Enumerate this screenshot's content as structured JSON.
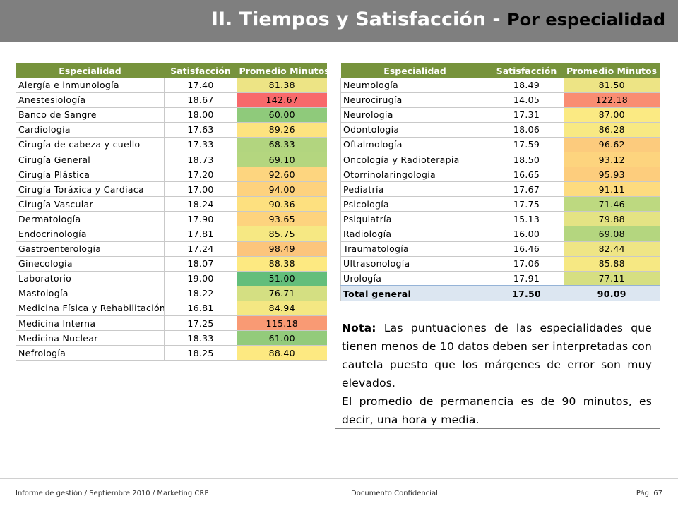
{
  "header": {
    "title_main": "II. Tiempos y  Satisfacción - ",
    "title_sub": "Por especialidad",
    "bg_color": "#7f7f7f"
  },
  "columns": {
    "especialidad": "Especialidad",
    "satisfaccion": "Satisfacción",
    "promedio": "Promedio Minutos"
  },
  "left_table": [
    {
      "especialidad": "Alergía e inmunología",
      "satisfaccion": "17.40",
      "promedio": "81.38",
      "color": "#ede485"
    },
    {
      "especialidad": "Anestesiología",
      "satisfaccion": "18.67",
      "promedio": "142.67",
      "color": "#f8696b"
    },
    {
      "especialidad": "Banco de Sangre",
      "satisfaccion": "18.00",
      "promedio": "60.00",
      "color": "#8fca7b"
    },
    {
      "especialidad": "Cardiología",
      "satisfaccion": "17.63",
      "promedio": "89.26",
      "color": "#fde37f"
    },
    {
      "especialidad": "Cirugía de cabeza y cuello",
      "satisfaccion": "17.33",
      "promedio": "68.33",
      "color": "#b2d57f"
    },
    {
      "especialidad": "Cirugía General",
      "satisfaccion": "18.73",
      "promedio": "69.10",
      "color": "#b4d67f"
    },
    {
      "especialidad": "Cirugía Plástica",
      "satisfaccion": "17.20",
      "promedio": "92.60",
      "color": "#fdd57f"
    },
    {
      "especialidad": "Cirugía Toráxica y Cardiaca",
      "satisfaccion": "17.00",
      "promedio": "94.00",
      "color": "#fdd27e"
    },
    {
      "especialidad": "Cirugía Vascular",
      "satisfaccion": "18.24",
      "promedio": "90.36",
      "color": "#fde07f"
    },
    {
      "especialidad": "Dermatología",
      "satisfaccion": "17.90",
      "promedio": "93.65",
      "color": "#fdd37e"
    },
    {
      "especialidad": "Endocrinología",
      "satisfaccion": "17.81",
      "promedio": "85.75",
      "color": "#f6e883"
    },
    {
      "especialidad": "Gastroenterología",
      "satisfaccion": "17.24",
      "promedio": "98.49",
      "color": "#fcc57c"
    },
    {
      "especialidad": "Ginecología",
      "satisfaccion": "18.07",
      "promedio": "88.38",
      "color": "#fde981"
    },
    {
      "especialidad": "Laboratorio",
      "satisfaccion": "19.00",
      "promedio": "51.00",
      "color": "#63be7b"
    },
    {
      "especialidad": "Mastología",
      "satisfaccion": "18.22",
      "promedio": "76.71",
      "color": "#d4df82"
    },
    {
      "especialidad": "Medicina Física y Rehabilitación",
      "satisfaccion": "16.81",
      "promedio": "84.94",
      "color": "#f4e783"
    },
    {
      "especialidad": "Medicina Interna",
      "satisfaccion": "17.25",
      "promedio": "115.18",
      "color": "#f99a74"
    },
    {
      "especialidad": "Medicina Nuclear",
      "satisfaccion": "18.33",
      "promedio": "61.00",
      "color": "#93cb7b"
    },
    {
      "especialidad": "Nefrología",
      "satisfaccion": "18.25",
      "promedio": "88.40",
      "color": "#fde981"
    }
  ],
  "right_table": [
    {
      "especialidad": "Neumología",
      "satisfaccion": "18.49",
      "promedio": "81.50",
      "color": "#ede485"
    },
    {
      "especialidad": "Neurocirugía",
      "satisfaccion": "14.05",
      "promedio": "122.18",
      "color": "#f98d72"
    },
    {
      "especialidad": "Neurología",
      "satisfaccion": "17.31",
      "promedio": "87.00",
      "color": "#fbea83"
    },
    {
      "especialidad": "Odontología",
      "satisfaccion": "18.06",
      "promedio": "86.28",
      "color": "#f8e983"
    },
    {
      "especialidad": "Oftalmología",
      "satisfaccion": "17.59",
      "promedio": "96.62",
      "color": "#fccb7d"
    },
    {
      "especialidad": "Oncología y Radioterapia",
      "satisfaccion": "18.50",
      "promedio": "93.12",
      "color": "#fdd47e"
    },
    {
      "especialidad": "Otorrinolaringología",
      "satisfaccion": "16.65",
      "promedio": "95.93",
      "color": "#fdcd7d"
    },
    {
      "especialidad": "Pediatría",
      "satisfaccion": "17.67",
      "promedio": "91.11",
      "color": "#fddb7f"
    },
    {
      "especialidad": "Psicología",
      "satisfaccion": "17.75",
      "promedio": "71.46",
      "color": "#bdd980"
    },
    {
      "especialidad": "Psiquiatría",
      "satisfaccion": "15.13",
      "promedio": "79.88",
      "color": "#e4e384"
    },
    {
      "especialidad": "Radiología",
      "satisfaccion": "16.00",
      "promedio": "69.08",
      "color": "#b4d67f"
    },
    {
      "especialidad": "Traumatología",
      "satisfaccion": "16.46",
      "promedio": "82.44",
      "color": "#efe585"
    },
    {
      "especialidad": "Ultrasonología",
      "satisfaccion": "17.06",
      "promedio": "85.88",
      "color": "#f6e883"
    },
    {
      "especialidad": "Urología",
      "satisfaccion": "17.91",
      "promedio": "77.11",
      "color": "#d6df82"
    }
  ],
  "total": {
    "especialidad": "Total general",
    "satisfaccion": "17.50",
    "promedio": "90.09"
  },
  "note": {
    "label": "Nota:",
    "text1": " Las puntuaciones de las especialidades que tienen menos de 10 datos deben ser interpretadas con cautela puesto que los márgenes de error son muy elevados.",
    "text2": "El promedio de permanencia es de 90 minutos, es decir, una hora y media."
  },
  "footer": {
    "left": "Informe de gestión / Septiembre 2010 / Marketing CRP",
    "center": "Documento Confidencial",
    "right": "Pág. 67"
  },
  "colors": {
    "header_green": "#77933c",
    "total_bg": "#dce6f1"
  }
}
